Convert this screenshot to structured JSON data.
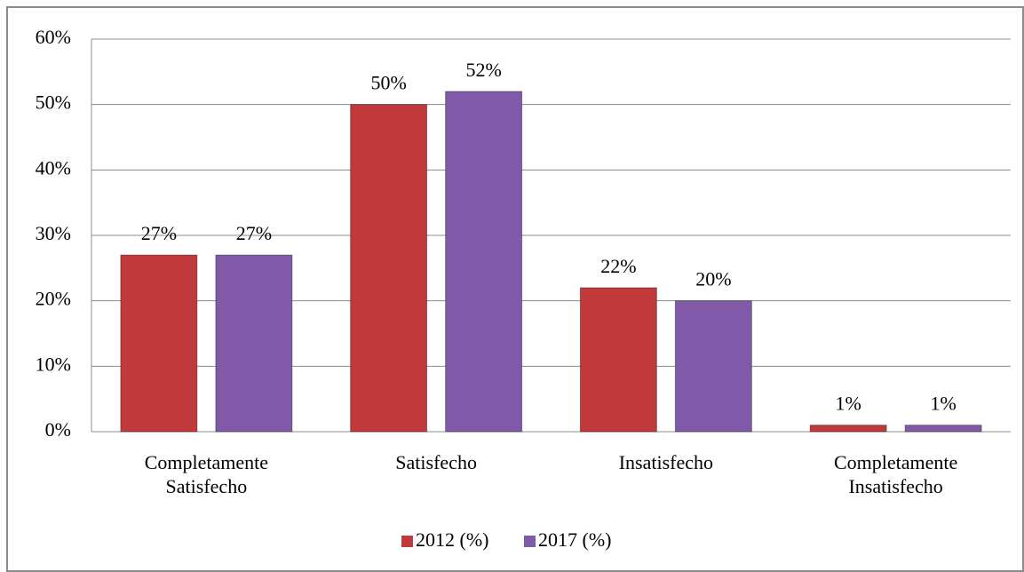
{
  "chart_data": {
    "type": "bar",
    "categories": [
      "Completamente Satisfecho",
      "Satisfecho",
      "Insatisfecho",
      "Completamente Insatisfecho"
    ],
    "series": [
      {
        "name": "2012 (%)",
        "color": "#c0393b",
        "values": [
          27,
          50,
          22,
          1
        ],
        "value_labels": [
          "27%",
          "50%",
          "22%",
          "1%"
        ]
      },
      {
        "name": "2017 (%)",
        "color": "#8059a8",
        "values": [
          27,
          52,
          20,
          1
        ],
        "value_labels": [
          "27%",
          "52%",
          "20%",
          "1%"
        ]
      }
    ],
    "ylim": [
      0,
      60
    ],
    "yticks": [
      {
        "value": 0,
        "label": "0%"
      },
      {
        "value": 10,
        "label": "10%"
      },
      {
        "value": 20,
        "label": "20%"
      },
      {
        "value": 30,
        "label": "30%"
      },
      {
        "value": 40,
        "label": "40%"
      },
      {
        "value": 50,
        "label": "50%"
      },
      {
        "value": 60,
        "label": "60%"
      }
    ],
    "grid": true,
    "legend": "bottom"
  }
}
